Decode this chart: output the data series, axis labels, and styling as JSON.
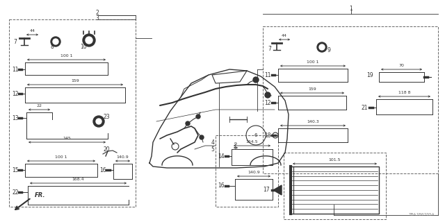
{
  "bg_color": "#ffffff",
  "line_color": "#333333",
  "watermark": "TBAJB0705A",
  "fig_w": 6.4,
  "fig_h": 3.2,
  "dpi": 100
}
